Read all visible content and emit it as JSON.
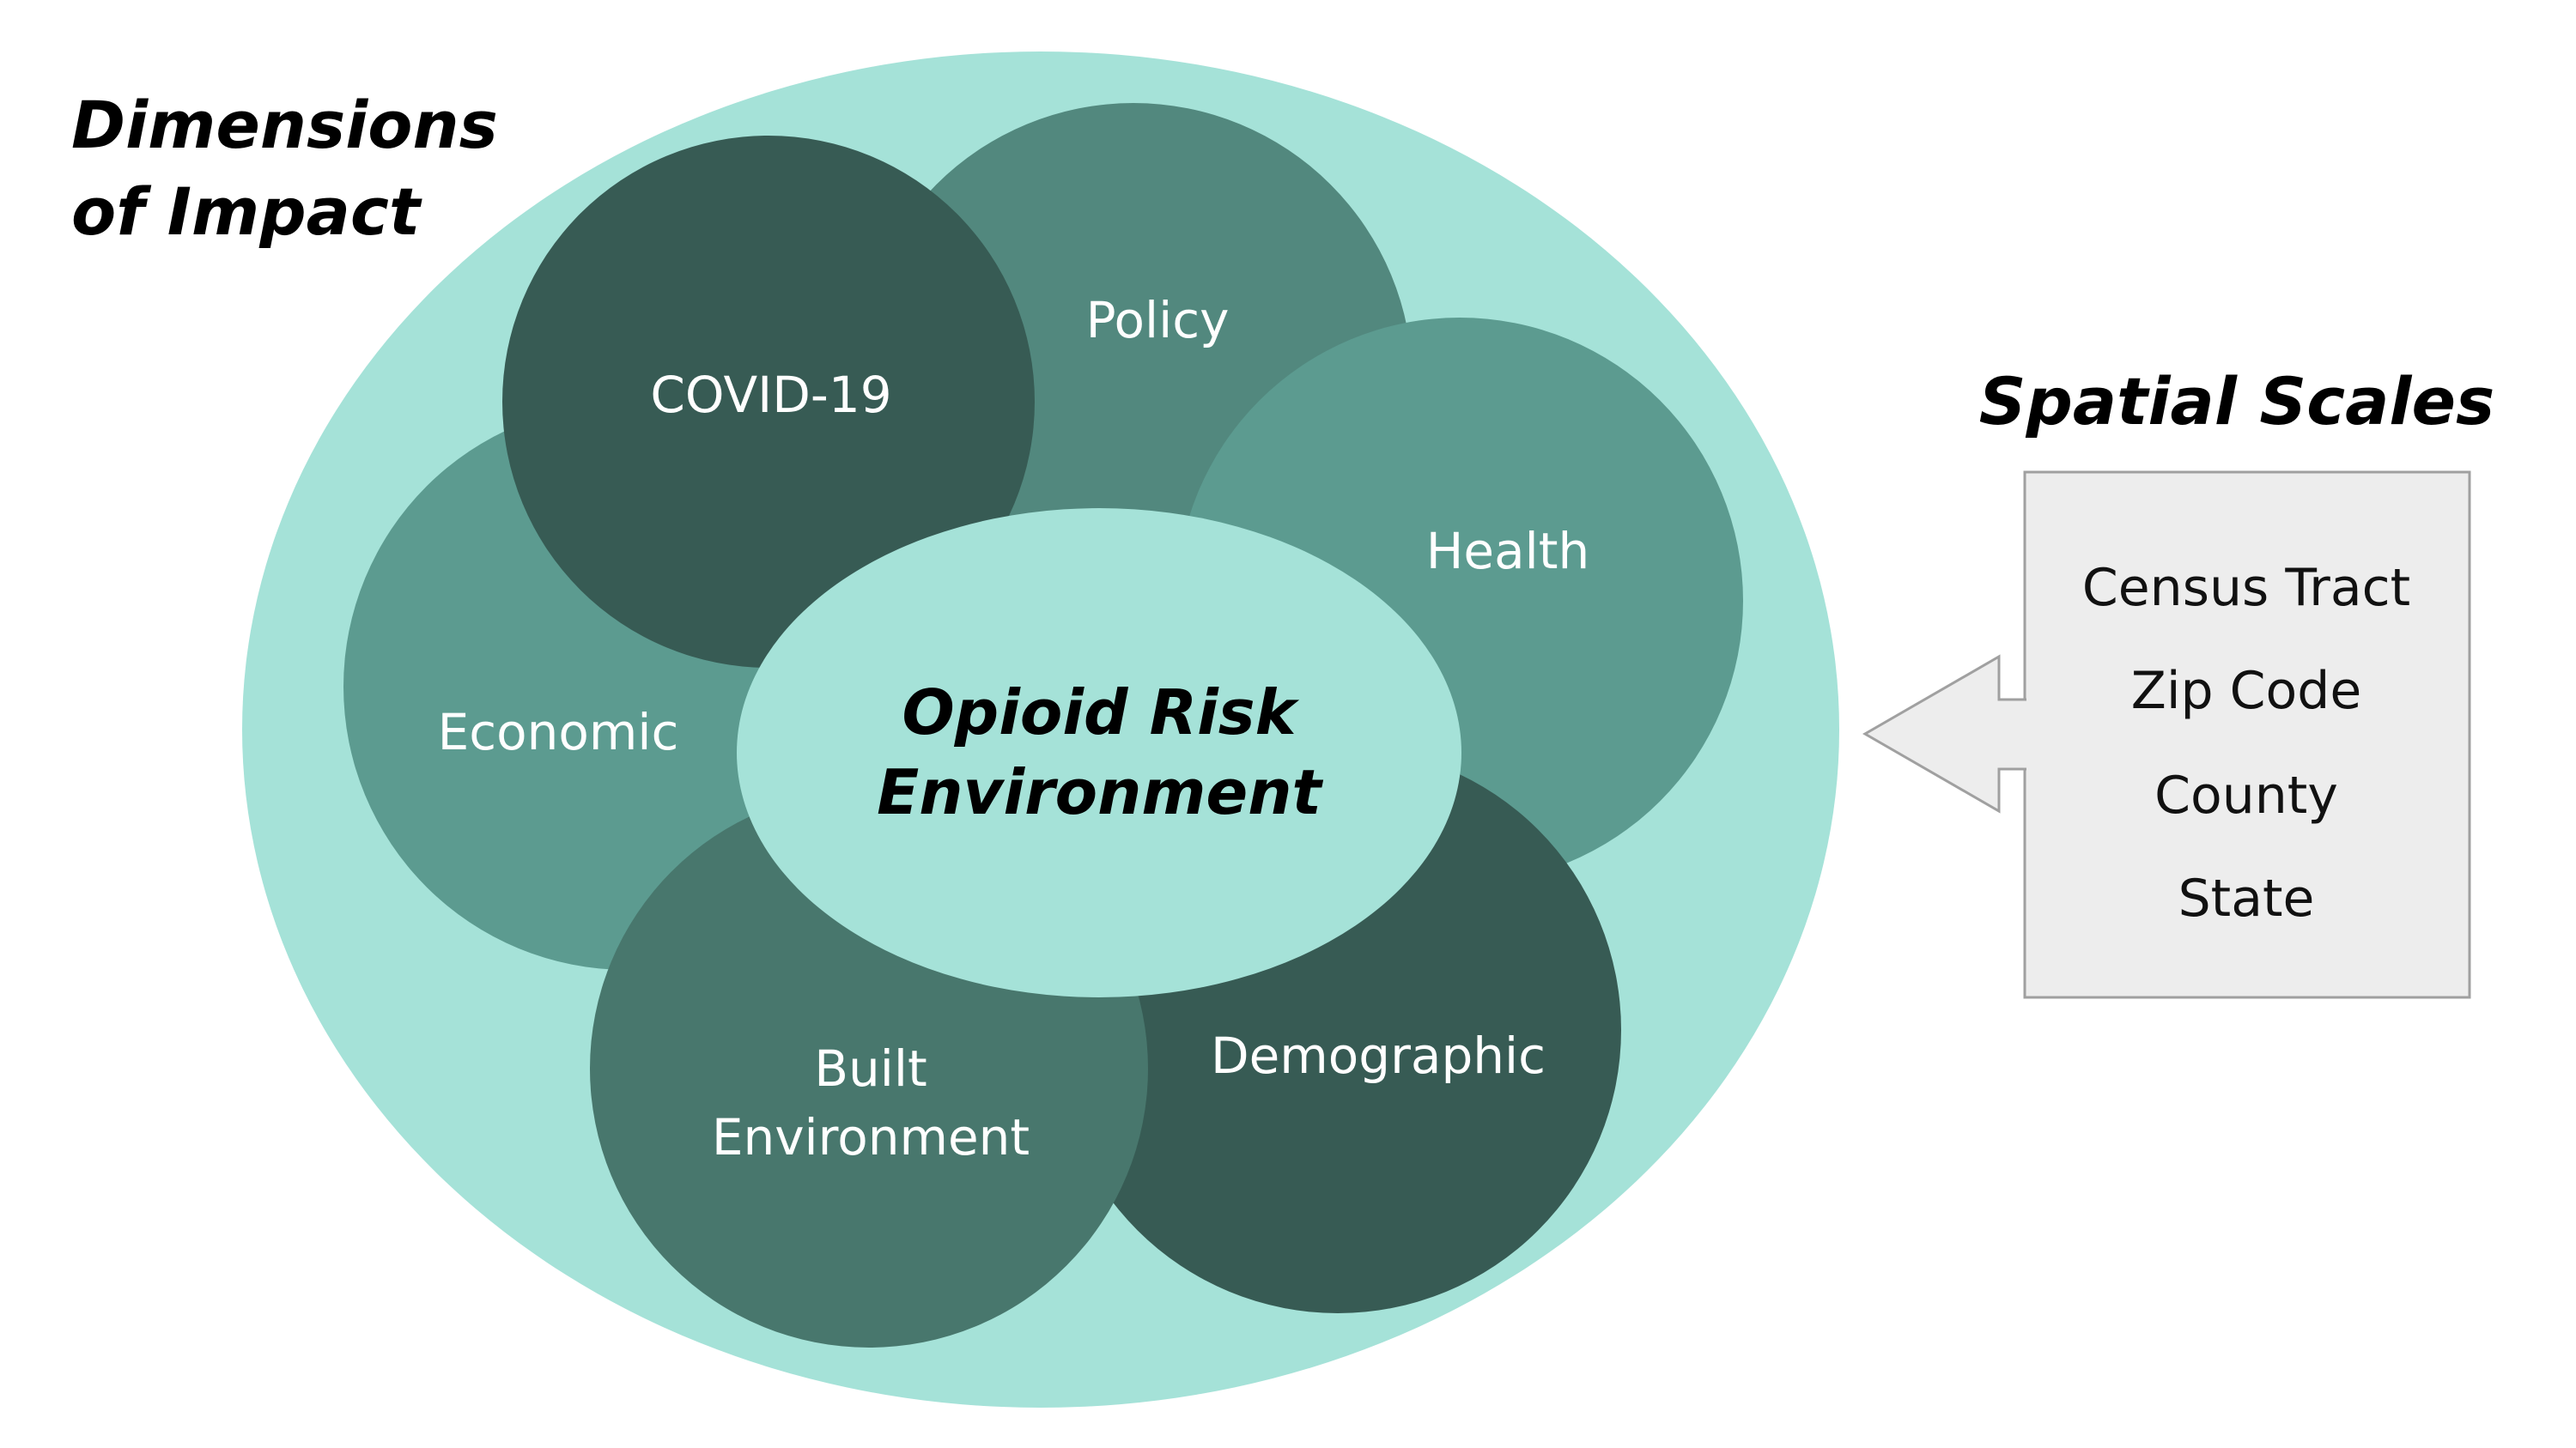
{
  "title": {
    "line1": "Dimensions",
    "line2": "of Impact"
  },
  "center": {
    "line1": "Opioid Risk",
    "line2": "Environment"
  },
  "dimensions": {
    "policy": "Policy",
    "covid": "COVID-19",
    "health": "Health",
    "economic": "Economic",
    "built_line1": "Built",
    "built_line2": "Environment",
    "demographic": "Demographic"
  },
  "spatial": {
    "heading": "Spatial Scales",
    "items": [
      "Census Tract",
      "Zip Code",
      "County",
      "State"
    ]
  },
  "colors": {
    "outer_ellipse": "#a5e2d8",
    "center_ellipse": "#a5e2d8",
    "policy": "#52887e",
    "covid": "#375b54",
    "health": "#5c9b90",
    "economic": "#5c9b90",
    "built_environment": "#48776d",
    "demographic": "#375b54",
    "box_fill": "#ededed",
    "box_stroke": "#a0a0a0"
  }
}
